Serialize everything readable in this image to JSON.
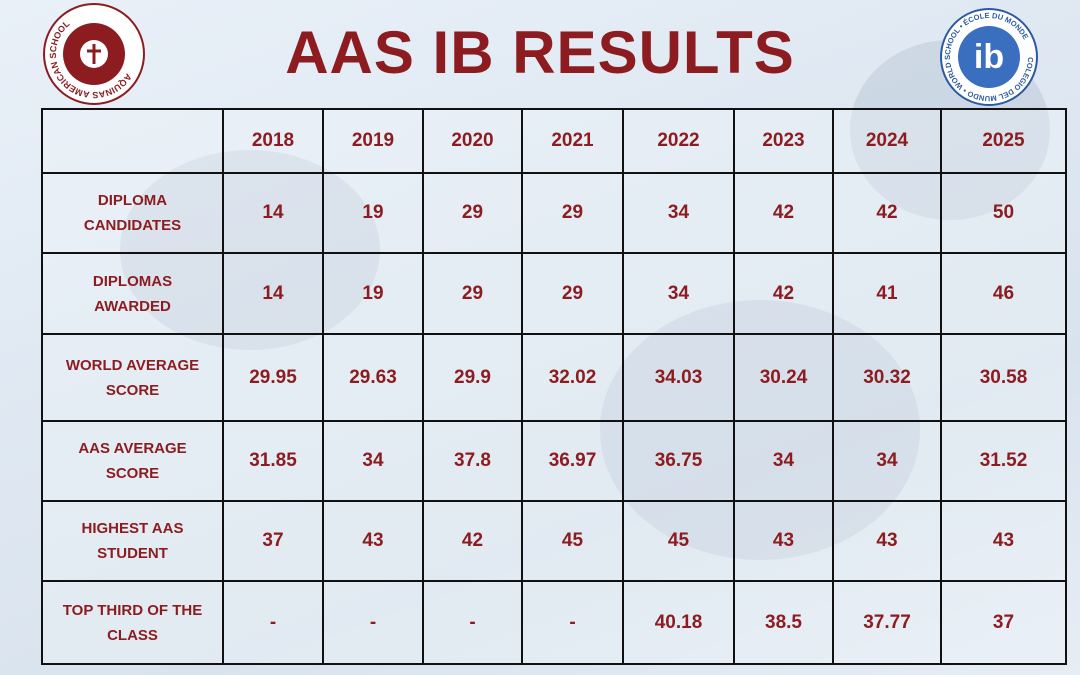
{
  "header": {
    "title": "AAS IB RESULTS",
    "left_logo": {
      "text": "AQUINAS AMERICAN SCHOOL"
    },
    "right_logo": {
      "mark": "ib",
      "text": "COLEGIO DEL MUNDO • WORLD SCHOOL • ÉCOLE DU MONDE"
    }
  },
  "table": {
    "columns": [
      "2018",
      "2019",
      "2020",
      "2021",
      "2022",
      "2023",
      "2024",
      "2025"
    ],
    "rows": [
      {
        "label": "DIPLOMA CANDIDATES",
        "values": [
          "14",
          "19",
          "29",
          "29",
          "34",
          "42",
          "42",
          "50"
        ]
      },
      {
        "label": "DIPLOMAS AWARDED",
        "values": [
          "14",
          "19",
          "29",
          "29",
          "34",
          "42",
          "41",
          "46"
        ]
      },
      {
        "label": "WORLD AVERAGE SCORE",
        "values": [
          "29.95",
          "29.63",
          "29.9",
          "32.02",
          "34.03",
          "30.24",
          "30.32",
          "30.58"
        ]
      },
      {
        "label": "AAS AVERAGE SCORE",
        "values": [
          "31.85",
          "34",
          "37.8",
          "36.97",
          "36.75",
          "34",
          "34",
          "31.52"
        ]
      },
      {
        "label": "HIGHEST AAS STUDENT",
        "values": [
          "37",
          "43",
          "42",
          "45",
          "45",
          "43",
          "43",
          "43"
        ]
      },
      {
        "label": "TOP THIRD OF THE CLASS",
        "values": [
          "-",
          "-",
          "-",
          "-",
          "40.18",
          "38.5",
          "37.77",
          "37"
        ]
      }
    ]
  }
}
